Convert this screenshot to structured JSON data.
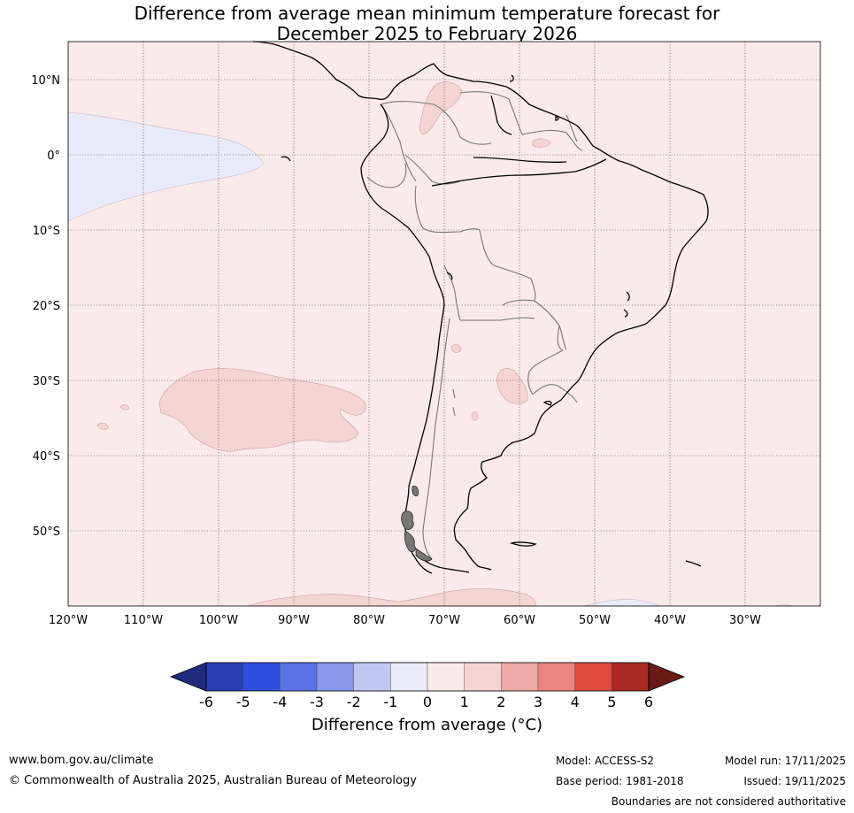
{
  "title": {
    "line1": "Difference from average mean minimum temperature forecast for",
    "line2": "December 2025 to February 2026"
  },
  "map": {
    "lat_labels": [
      "10°N",
      "0°",
      "10°S",
      "20°S",
      "30°S",
      "40°S",
      "50°S"
    ],
    "lon_labels": [
      "120°W",
      "110°W",
      "100°W",
      "90°W",
      "80°W",
      "70°W",
      "60°W",
      "50°W",
      "40°W",
      "30°W"
    ]
  },
  "colorbar": {
    "ticks": [
      "-6",
      "-5",
      "-4",
      "-3",
      "-2",
      "-1",
      "0",
      "1",
      "2",
      "3",
      "4",
      "5",
      "6"
    ],
    "colors": [
      "#1f2a7a",
      "#2a3db2",
      "#2f4fe0",
      "#5b72e6",
      "#8899ec",
      "#c0c8f2",
      "#e9ebfa",
      "#fbeaea",
      "#f5d4d4",
      "#eeaaa6",
      "#e8857f",
      "#dd4a3e",
      "#a82a22",
      "#6b1a15"
    ],
    "title": "Difference from average (°C)"
  },
  "footer": {
    "website": "www.bom.gov.au/climate",
    "copyright": "© Commonwealth of Australia 2025, Australian Bureau of Meteorology",
    "model": "Model: ACCESS-S2",
    "base_period": "Base period: 1981-2018",
    "model_run": "Model run: 17/11/2025",
    "issued": "Issued: 19/11/2025",
    "disclaimer": "Boundaries are not considered authoritative"
  }
}
